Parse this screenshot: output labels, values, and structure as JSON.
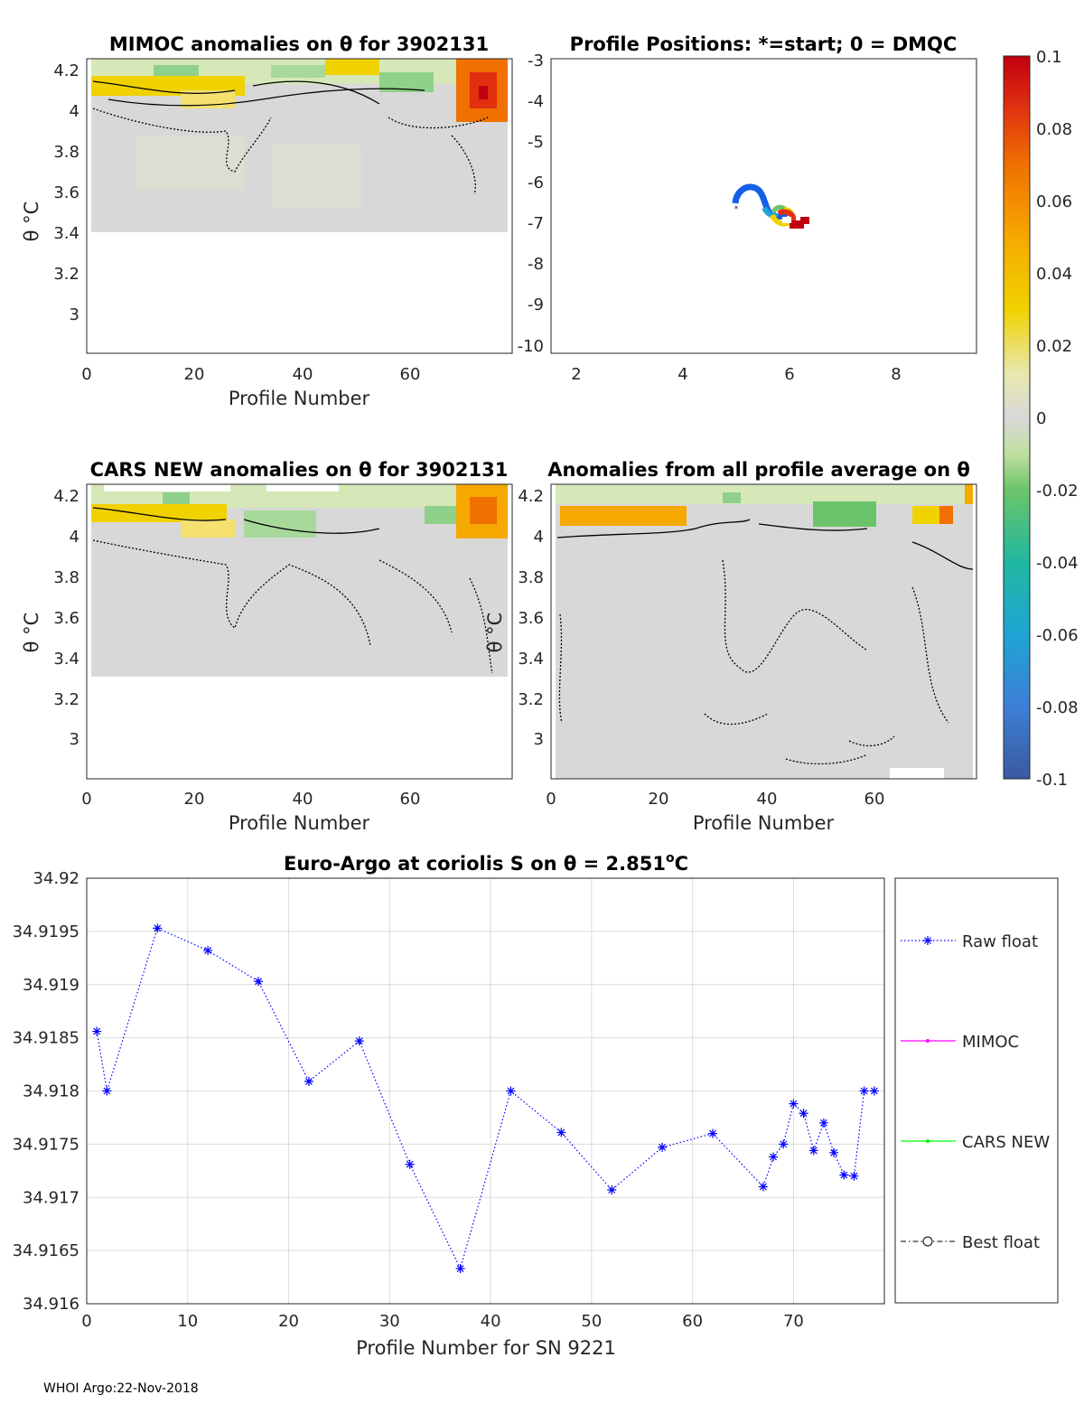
{
  "panels": {
    "mimoc": {
      "title": "MIMOC anomalies on θ  for 3902131",
      "xlabel": "Profile Number",
      "ylabel": "θ °C",
      "xticks": [
        "0",
        "20",
        "40",
        "60"
      ],
      "yticks": [
        "4.2",
        "4",
        "3.8",
        "3.6",
        "3.4",
        "3.2",
        "3"
      ]
    },
    "positions": {
      "title": "Profile Positions: *=start; 0 = DMQC",
      "xticks": [
        "2",
        "4",
        "6",
        "8"
      ],
      "yticks": [
        "-3",
        "-4",
        "-5",
        "-6",
        "-7",
        "-8",
        "-9",
        "-10"
      ]
    },
    "cars": {
      "title": "CARS NEW anomalies on θ for 3902131",
      "xlabel": "Profile Number",
      "ylabel": "θ °C",
      "xticks": [
        "0",
        "20",
        "40",
        "60"
      ],
      "yticks": [
        "4.2",
        "4",
        "3.8",
        "3.6",
        "3.4",
        "3.2",
        "3"
      ]
    },
    "average": {
      "title": "Anomalies from all profile average on θ",
      "xlabel": "Profile Number",
      "ylabel": "θ °C",
      "xticks": [
        "0",
        "20",
        "40",
        "60"
      ],
      "yticks": [
        "4.2",
        "4",
        "3.8",
        "3.6",
        "3.4",
        "3.2",
        "3"
      ]
    }
  },
  "colorbar": {
    "ticks": [
      "0.1",
      "0.08",
      "0.06",
      "0.04",
      "0.02",
      "0",
      "-0.02",
      "-0.04",
      "-0.06",
      "-0.08",
      "-0.1"
    ],
    "range": [
      -0.1,
      0.1
    ],
    "colors": [
      "#3a5a9f",
      "#3d7fd6",
      "#1ea5d4",
      "#20b8a0",
      "#6cc46a",
      "#d8d8d8",
      "#f0d200",
      "#f5a800",
      "#f07000",
      "#e03010",
      "#c00010"
    ]
  },
  "footer": "WHOI Argo:22-Nov-2018",
  "chart_data": {
    "type": "line",
    "title": "Euro-Argo at coriolis S on θ = 2.851",
    "title_superscript": "o",
    "title_unit": "C",
    "xlabel": "Profile Number for SN 9221",
    "ylabel": "",
    "xlim": [
      0,
      79
    ],
    "ylim": [
      34.916,
      34.92
    ],
    "xticks": [
      "0",
      "10",
      "20",
      "30",
      "40",
      "50",
      "60",
      "70"
    ],
    "yticks": [
      "34.92",
      "34.9195",
      "34.919",
      "34.9185",
      "34.918",
      "34.9175",
      "34.917",
      "34.9165",
      "34.916"
    ],
    "grid": true,
    "legend_position": "right",
    "legend": [
      {
        "name": "Raw float",
        "color": "#0000ff",
        "style": "dotted-star"
      },
      {
        "name": "MIMOC",
        "color": "#ff00ff",
        "style": "solid-dot"
      },
      {
        "name": "CARS NEW",
        "color": "#00ff00",
        "style": "solid-dot"
      },
      {
        "name": "Best float",
        "color": "#000000",
        "style": "dashdot-circle"
      }
    ],
    "series": [
      {
        "name": "Raw float",
        "x": [
          1,
          2,
          7,
          12,
          17,
          22,
          27,
          32,
          37,
          42,
          47,
          52,
          57,
          62,
          67,
          68,
          69,
          70,
          71,
          72,
          73,
          74,
          75,
          76,
          77,
          78
        ],
        "values": [
          34.91856,
          34.918,
          34.91953,
          34.91932,
          34.91903,
          34.91809,
          34.91847,
          34.91731,
          34.91633,
          34.918,
          34.91761,
          34.91707,
          34.91747,
          34.9176,
          34.9171,
          34.91738,
          34.9175,
          34.91788,
          34.91779,
          34.91744,
          34.9177,
          34.91742,
          34.91721,
          34.9172,
          34.918,
          34.918
        ]
      }
    ]
  }
}
